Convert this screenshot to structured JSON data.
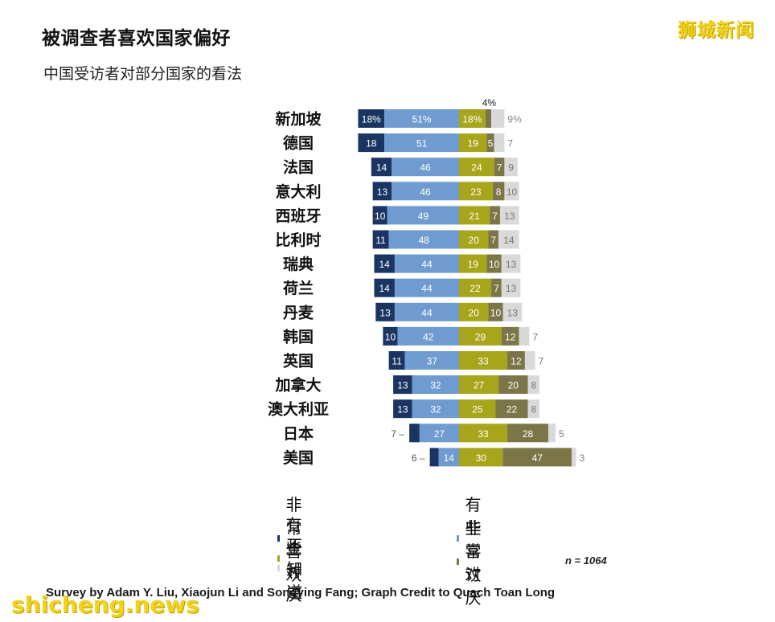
{
  "title": "被调查者喜欢国家偏好",
  "subtitle": "中国受访者对部分国家的看法",
  "watermark_cn": "狮城新闻",
  "watermark_en": "shicheng.news",
  "credit": "Survey by Adam Y. Liu, Xiaojun Li and Songying Fang; Graph Credit to Quach Toan Long",
  "sample_label": "n = 1064",
  "colors": {
    "very_like": "#1b3563",
    "somewhat_like": "#6f9bd1",
    "somewhat_dislike": "#a7a51a",
    "very_dislike": "#7b7548",
    "dont_know": "#d9d9d9"
  },
  "chart_data": {
    "type": "bar",
    "orientation": "horizontal-stacked-diverging",
    "categories": [
      "新加坡",
      "德国",
      "法国",
      "意大利",
      "西班牙",
      "比利时",
      "瑞典",
      "荷兰",
      "丹麦",
      "韩国",
      "英国",
      "加拿大",
      "澳大利亚",
      "日本",
      "美国"
    ],
    "series": [
      {
        "name": "非常喜欢",
        "values": [
          18,
          18,
          14,
          13,
          10,
          11,
          14,
          14,
          13,
          10,
          11,
          13,
          13,
          7,
          6
        ]
      },
      {
        "name": "有些喜欢",
        "values": [
          51,
          51,
          46,
          46,
          49,
          48,
          44,
          44,
          44,
          42,
          37,
          32,
          32,
          27,
          14
        ]
      },
      {
        "name": "有些讨厌",
        "values": [
          18,
          19,
          24,
          23,
          21,
          20,
          19,
          22,
          20,
          29,
          33,
          27,
          25,
          33,
          30
        ]
      },
      {
        "name": "非常讨厌",
        "values": [
          4,
          5,
          7,
          8,
          7,
          7,
          10,
          7,
          10,
          12,
          12,
          20,
          22,
          28,
          47
        ]
      },
      {
        "name": "不知道",
        "values": [
          9,
          7,
          9,
          10,
          13,
          14,
          13,
          13,
          13,
          7,
          7,
          8,
          8,
          5,
          3
        ]
      }
    ],
    "value_labels_first_row_percent": true,
    "legend": {
      "position": "bottom",
      "items": [
        "非常喜欢",
        "有些喜欢",
        "有些讨厌",
        "非常讨厌",
        "不知道"
      ]
    }
  }
}
